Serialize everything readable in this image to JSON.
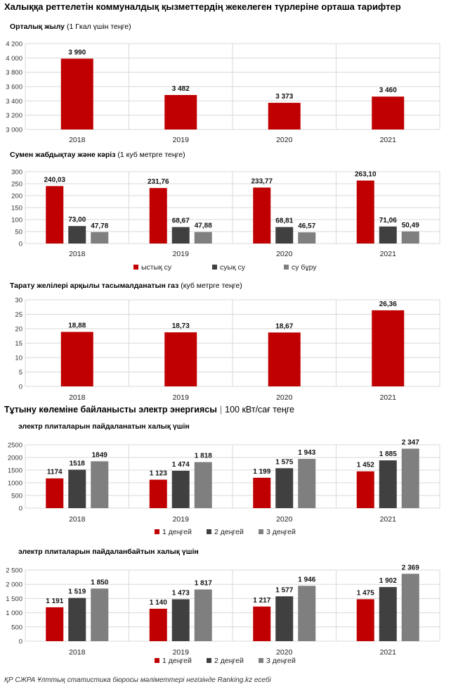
{
  "page": {
    "title": "Халыққа реттелетін коммуналдық қызметтердің жекелеген түрлеріне орташа тарифтер",
    "section_title": "Тұтыну көлеміне байланысты электр энергиясы",
    "section_unit": "100 кВт/сағ теңге",
    "footer": "ҚР СЖРА Ұлттық статистика бюросы мәліметтері негізінде Ranking.kz есебі"
  },
  "colors": {
    "red": "#c00000",
    "dark": "#404040",
    "gray": "#7f7f7f",
    "grid": "#d9d9d9"
  },
  "chart_data": [
    {
      "id": "heating",
      "type": "bar",
      "subtitle_bold": "Орталық жылу",
      "subtitle_rest": " (1 Гкал үшін теңге)",
      "categories": [
        "2018",
        "2019",
        "2020",
        "2021"
      ],
      "series": [
        {
          "name": "",
          "color": "#c00000",
          "values": [
            3990,
            3482,
            3373,
            3460
          ],
          "labels": [
            "3 990",
            "3 482",
            "3 373",
            "3 460"
          ]
        }
      ],
      "ylim": [
        3000,
        4200
      ],
      "yticks": [
        3000,
        3200,
        3400,
        3600,
        3800,
        4000,
        4200
      ],
      "ytick_labels": [
        "3 000",
        "3 200",
        "3 400",
        "3 600",
        "3 800",
        "4 000",
        "4 200"
      ],
      "legend": false
    },
    {
      "id": "water",
      "type": "bar",
      "subtitle_bold": "Сумен жабдықтау және кәріз",
      "subtitle_rest": " (1 куб метрге теңге)",
      "categories": [
        "2018",
        "2019",
        "2020",
        "2021"
      ],
      "series": [
        {
          "name": "ыстық су",
          "color": "#c00000",
          "values": [
            240.03,
            231.76,
            233.77,
            263.1
          ],
          "labels": [
            "240,03",
            "231,76",
            "233,77",
            "263,10"
          ]
        },
        {
          "name": "суық су",
          "color": "#404040",
          "values": [
            73.0,
            68.67,
            68.81,
            71.06
          ],
          "labels": [
            "73,00",
            "68,67",
            "68,81",
            "71,06"
          ]
        },
        {
          "name": "су бұру",
          "color": "#7f7f7f",
          "values": [
            47.78,
            47.88,
            46.57,
            50.49
          ],
          "labels": [
            "47,78",
            "47,88",
            "46,57",
            "50,49"
          ]
        }
      ],
      "ylim": [
        0,
        300
      ],
      "yticks": [
        0,
        50,
        100,
        150,
        200,
        250,
        300
      ],
      "ytick_labels": [
        "0",
        "50",
        "100",
        "150",
        "200",
        "250",
        "300"
      ],
      "legend": true
    },
    {
      "id": "gas",
      "type": "bar",
      "subtitle_bold": "Тарату желілері арқылы тасымалданатын газ",
      "subtitle_rest": " (куб метрге теңге)",
      "categories": [
        "2018",
        "2019",
        "2020",
        "2021"
      ],
      "series": [
        {
          "name": "",
          "color": "#c00000",
          "values": [
            18.88,
            18.73,
            18.67,
            26.36
          ],
          "labels": [
            "18,88",
            "18,73",
            "18,67",
            "26,36"
          ]
        }
      ],
      "ylim": [
        0,
        30
      ],
      "yticks": [
        0,
        5,
        10,
        15,
        20,
        25,
        30
      ],
      "ytick_labels": [
        "0",
        "5",
        "10",
        "15",
        "20",
        "25",
        "30"
      ],
      "legend": false
    },
    {
      "id": "elec_with",
      "type": "bar",
      "subtitle_bold": "электр плиталарын пайдаланатын халық үшін",
      "subtitle_rest": "",
      "categories": [
        "2018",
        "2019",
        "2020",
        "2021"
      ],
      "series": [
        {
          "name": "1 деңгей",
          "color": "#c00000",
          "values": [
            1174,
            1123,
            1199,
            1452
          ],
          "labels": [
            "1174",
            "1 123",
            "1 199",
            "1 452"
          ]
        },
        {
          "name": "2 деңгей",
          "color": "#404040",
          "values": [
            1518,
            1474,
            1575,
            1885
          ],
          "labels": [
            "1518",
            "1 474",
            "1 575",
            "1 885"
          ]
        },
        {
          "name": "3 деңгей",
          "color": "#7f7f7f",
          "values": [
            1849,
            1818,
            1943,
            2347
          ],
          "labels": [
            "1849",
            "1 818",
            "1 943",
            "2 347"
          ]
        }
      ],
      "ylim": [
        0,
        2500
      ],
      "yticks": [
        0,
        500,
        1000,
        1500,
        2000,
        2500
      ],
      "ytick_labels": [
        "0",
        "500",
        "1000",
        "1500",
        "2000",
        "2500"
      ],
      "legend": true
    },
    {
      "id": "elec_without",
      "type": "bar",
      "subtitle_bold": "электр плиталарын пайдаланбайтын халық үшін",
      "subtitle_rest": "",
      "categories": [
        "2018",
        "2019",
        "2020",
        "2021"
      ],
      "series": [
        {
          "name": "1 деңгей",
          "color": "#c00000",
          "values": [
            1191,
            1140,
            1217,
            1475
          ],
          "labels": [
            "1 191",
            "1 140",
            "1 217",
            "1 475"
          ]
        },
        {
          "name": "2 деңгей",
          "color": "#404040",
          "values": [
            1519,
            1473,
            1577,
            1902
          ],
          "labels": [
            "1 519",
            "1 473",
            "1 577",
            "1 902"
          ]
        },
        {
          "name": "3 деңгей",
          "color": "#7f7f7f",
          "values": [
            1850,
            1817,
            1946,
            2369
          ],
          "labels": [
            "1 850",
            "1 817",
            "1 946",
            "2 369"
          ]
        }
      ],
      "ylim": [
        0,
        2500
      ],
      "yticks": [
        0,
        500,
        1000,
        1500,
        2000,
        2500
      ],
      "ytick_labels": [
        "0",
        "500",
        "1 000",
        "1 500",
        "2 000",
        "2 500"
      ],
      "legend": true
    }
  ]
}
